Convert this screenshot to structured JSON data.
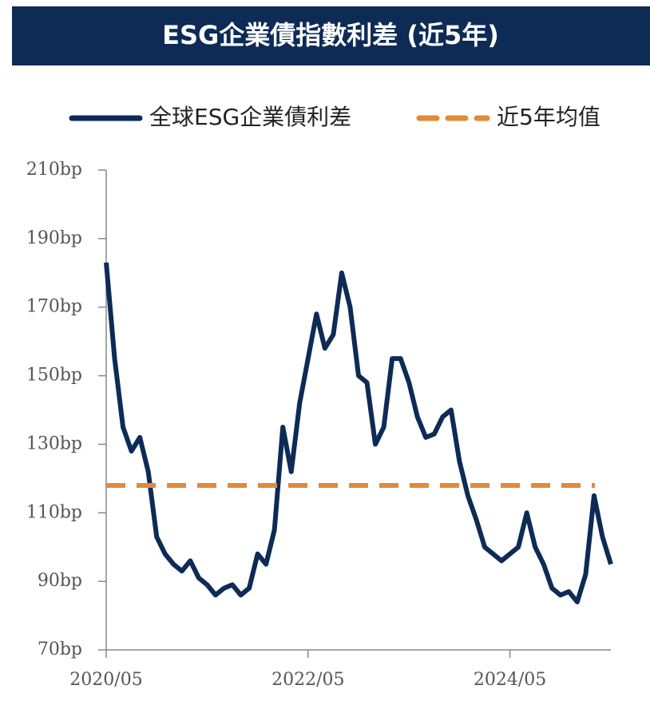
{
  "chart_data": {
    "type": "line",
    "title": "ESG企業債指數利差 (近5年)",
    "x": [
      "2020/05",
      "2020/06",
      "2020/07",
      "2020/08",
      "2020/09",
      "2020/10",
      "2020/11",
      "2020/12",
      "2021/01",
      "2021/02",
      "2021/03",
      "2021/04",
      "2021/05",
      "2021/06",
      "2021/07",
      "2021/08",
      "2021/09",
      "2021/10",
      "2021/11",
      "2021/12",
      "2022/01",
      "2022/02",
      "2022/03",
      "2022/04",
      "2022/05",
      "2022/06",
      "2022/07",
      "2022/08",
      "2022/09",
      "2022/10",
      "2022/11",
      "2022/12",
      "2023/01",
      "2023/02",
      "2023/03",
      "2023/04",
      "2023/05",
      "2023/06",
      "2023/07",
      "2023/08",
      "2023/09",
      "2023/10",
      "2023/11",
      "2023/12",
      "2024/01",
      "2024/02",
      "2024/03",
      "2024/04",
      "2024/05",
      "2024/06",
      "2024/07",
      "2024/08",
      "2024/09",
      "2024/10",
      "2024/11",
      "2024/12",
      "2025/01",
      "2025/02",
      "2025/03",
      "2025/04",
      "2025/05"
    ],
    "series": [
      {
        "name": "全球ESG企業債利差",
        "color": "#0d2b55",
        "values": [
          183,
          155,
          135,
          128,
          132,
          122,
          103,
          98,
          95,
          93,
          96,
          91,
          89,
          86,
          88,
          89,
          86,
          88,
          98,
          95,
          105,
          135,
          122,
          142,
          155,
          168,
          158,
          162,
          180,
          170,
          150,
          148,
          130,
          135,
          155,
          155,
          148,
          138,
          132,
          133,
          138,
          140,
          125,
          115,
          108,
          100,
          98,
          96,
          98,
          100,
          110,
          100,
          95,
          88,
          86,
          87,
          84,
          92,
          115,
          103,
          95
        ]
      },
      {
        "name": "近5年均值",
        "color": "#e08a3c",
        "value": 118
      }
    ],
    "ylim": [
      70,
      210
    ],
    "yticks": [
      {
        "value": 70,
        "label": "70bp"
      },
      {
        "value": 90,
        "label": "90bp"
      },
      {
        "value": 110,
        "label": "110bp"
      },
      {
        "value": 130,
        "label": "130bp"
      },
      {
        "value": 150,
        "label": "150bp"
      },
      {
        "value": 170,
        "label": "170bp"
      },
      {
        "value": 190,
        "label": "190bp"
      },
      {
        "value": 210,
        "label": "210bp"
      }
    ],
    "xticks": [
      "2020/05",
      "2022/05",
      "2024/05"
    ]
  }
}
